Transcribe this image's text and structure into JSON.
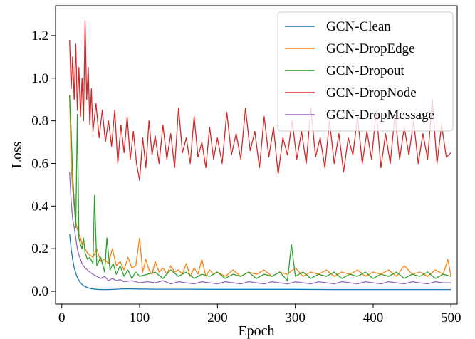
{
  "chart_data": {
    "type": "line",
    "xlabel": "Epoch",
    "ylabel": "Loss",
    "xlim": [
      -8,
      508
    ],
    "ylim": [
      -0.06,
      1.34
    ],
    "xticks": [
      0,
      100,
      200,
      300,
      400,
      500
    ],
    "xtick_labels": [
      "0",
      "100",
      "200",
      "300",
      "400",
      "500"
    ],
    "yticks": [
      0.0,
      0.2,
      0.4,
      0.6,
      0.8,
      1.0,
      1.2
    ],
    "ytick_labels": [
      "0.0",
      "0.2",
      "0.4",
      "0.6",
      "0.8",
      "1.0",
      "1.2"
    ],
    "grid": false,
    "legend_position": "top-right",
    "series": [
      {
        "name": "GCN-Clean",
        "color": "#1f77b4",
        "x": [
          10,
          12,
          14,
          16,
          18,
          20,
          23,
          26,
          30,
          35,
          40,
          45,
          50,
          60,
          70,
          80,
          100,
          120,
          150,
          200,
          250,
          300,
          350,
          400,
          450,
          500
        ],
        "y": [
          0.27,
          0.2,
          0.15,
          0.11,
          0.085,
          0.065,
          0.045,
          0.032,
          0.022,
          0.015,
          0.011,
          0.009,
          0.008,
          0.008,
          0.01,
          0.012,
          0.011,
          0.01,
          0.01,
          0.009,
          0.009,
          0.009,
          0.008,
          0.008,
          0.008,
          0.008
        ]
      },
      {
        "name": "GCN-DropEdge",
        "color": "#ff7f0e",
        "x": [
          10,
          12,
          14,
          16,
          18,
          20,
          22,
          24,
          26,
          28,
          30,
          33,
          36,
          40,
          45,
          50,
          55,
          60,
          65,
          70,
          75,
          80,
          85,
          90,
          95,
          100,
          104,
          108,
          112,
          116,
          120,
          125,
          130,
          135,
          140,
          145,
          150,
          155,
          160,
          165,
          170,
          175,
          180,
          185,
          190,
          195,
          200,
          210,
          220,
          230,
          240,
          250,
          260,
          270,
          280,
          290,
          300,
          310,
          320,
          330,
          340,
          350,
          360,
          370,
          380,
          390,
          400,
          410,
          420,
          430,
          440,
          450,
          460,
          470,
          480,
          490,
          496,
          500
        ],
        "y": [
          0.92,
          0.6,
          0.48,
          0.4,
          0.33,
          0.29,
          0.27,
          0.25,
          0.22,
          0.24,
          0.2,
          0.18,
          0.17,
          0.16,
          0.2,
          0.14,
          0.15,
          0.13,
          0.2,
          0.12,
          0.14,
          0.1,
          0.16,
          0.11,
          0.12,
          0.25,
          0.09,
          0.15,
          0.1,
          0.08,
          0.14,
          0.09,
          0.11,
          0.08,
          0.12,
          0.09,
          0.1,
          0.08,
          0.13,
          0.07,
          0.11,
          0.08,
          0.15,
          0.07,
          0.1,
          0.08,
          0.09,
          0.07,
          0.1,
          0.07,
          0.09,
          0.08,
          0.1,
          0.07,
          0.09,
          0.08,
          0.11,
          0.07,
          0.09,
          0.08,
          0.1,
          0.07,
          0.09,
          0.08,
          0.1,
          0.07,
          0.09,
          0.08,
          0.1,
          0.07,
          0.12,
          0.08,
          0.09,
          0.07,
          0.1,
          0.08,
          0.15,
          0.07
        ]
      },
      {
        "name": "GCN-Dropout",
        "color": "#2ca02c",
        "x": [
          10,
          12,
          14,
          16,
          18,
          20,
          22,
          24,
          26,
          28,
          30,
          33,
          36,
          40,
          42,
          45,
          50,
          55,
          58,
          62,
          66,
          70,
          75,
          80,
          85,
          90,
          95,
          100,
          110,
          120,
          130,
          140,
          150,
          160,
          170,
          180,
          190,
          200,
          210,
          220,
          230,
          240,
          250,
          260,
          270,
          280,
          290,
          295,
          300,
          310,
          320,
          330,
          340,
          350,
          360,
          370,
          380,
          390,
          400,
          410,
          420,
          430,
          440,
          450,
          460,
          470,
          480,
          490,
          500
        ],
        "y": [
          0.92,
          0.75,
          0.55,
          0.42,
          0.3,
          0.83,
          0.25,
          0.22,
          0.2,
          0.25,
          0.18,
          0.15,
          0.16,
          0.13,
          0.45,
          0.12,
          0.16,
          0.09,
          0.25,
          0.1,
          0.13,
          0.08,
          0.12,
          0.07,
          0.1,
          0.06,
          0.09,
          0.07,
          0.08,
          0.09,
          0.06,
          0.1,
          0.07,
          0.09,
          0.06,
          0.08,
          0.07,
          0.09,
          0.06,
          0.08,
          0.07,
          0.09,
          0.06,
          0.08,
          0.07,
          0.09,
          0.05,
          0.22,
          0.07,
          0.09,
          0.06,
          0.08,
          0.07,
          0.09,
          0.06,
          0.08,
          0.07,
          0.09,
          0.06,
          0.08,
          0.07,
          0.09,
          0.06,
          0.08,
          0.07,
          0.09,
          0.06,
          0.08,
          0.07
        ]
      },
      {
        "name": "GCN-DropNode",
        "color": "#d62728",
        "x": [
          10,
          12,
          14,
          16,
          18,
          20,
          22,
          24,
          26,
          28,
          30,
          32,
          34,
          36,
          38,
          40,
          44,
          48,
          52,
          56,
          60,
          64,
          68,
          72,
          76,
          80,
          84,
          88,
          92,
          96,
          100,
          104,
          108,
          112,
          116,
          120,
          125,
          130,
          135,
          140,
          145,
          150,
          155,
          160,
          165,
          170,
          175,
          180,
          185,
          190,
          195,
          200,
          206,
          212,
          218,
          224,
          230,
          236,
          242,
          248,
          254,
          260,
          266,
          272,
          278,
          284,
          290,
          296,
          302,
          308,
          314,
          320,
          326,
          332,
          338,
          344,
          350,
          356,
          362,
          368,
          374,
          380,
          386,
          392,
          398,
          404,
          410,
          416,
          422,
          428,
          434,
          440,
          446,
          452,
          458,
          464,
          470,
          476,
          482,
          488,
          494,
          500
        ],
        "y": [
          1.18,
          0.95,
          1.1,
          0.9,
          1.16,
          0.85,
          1.05,
          0.82,
          1.0,
          0.8,
          1.27,
          0.9,
          1.05,
          0.78,
          0.95,
          0.75,
          0.88,
          0.72,
          0.85,
          0.7,
          0.8,
          0.68,
          0.85,
          0.6,
          0.78,
          0.65,
          0.82,
          0.62,
          0.75,
          0.6,
          0.52,
          0.72,
          0.58,
          0.8,
          0.64,
          0.73,
          0.6,
          0.78,
          0.62,
          0.74,
          0.58,
          0.86,
          0.65,
          0.72,
          0.6,
          0.82,
          0.63,
          0.7,
          0.58,
          0.77,
          0.62,
          0.72,
          0.6,
          0.84,
          0.64,
          0.74,
          0.62,
          0.86,
          0.66,
          0.75,
          0.58,
          0.82,
          0.63,
          0.77,
          0.55,
          0.72,
          0.64,
          0.8,
          0.62,
          0.75,
          0.6,
          0.86,
          0.63,
          0.72,
          0.58,
          0.8,
          0.6,
          0.74,
          0.56,
          0.72,
          0.64,
          0.82,
          0.6,
          0.75,
          0.62,
          0.85,
          0.58,
          0.74,
          0.6,
          0.83,
          0.62,
          0.77,
          0.64,
          0.8,
          0.6,
          0.74,
          0.62,
          0.9,
          0.6,
          0.78,
          0.63,
          0.65
        ]
      },
      {
        "name": "GCN-DropMessage",
        "color": "#9467bd",
        "x": [
          10,
          12,
          14,
          16,
          18,
          20,
          22,
          24,
          26,
          28,
          30,
          33,
          36,
          40,
          45,
          50,
          55,
          60,
          65,
          70,
          75,
          80,
          90,
          100,
          110,
          120,
          130,
          140,
          150,
          160,
          170,
          180,
          190,
          200,
          210,
          220,
          230,
          240,
          250,
          260,
          270,
          280,
          290,
          300,
          310,
          320,
          330,
          340,
          350,
          360,
          370,
          380,
          390,
          400,
          410,
          420,
          430,
          440,
          450,
          460,
          470,
          480,
          490,
          500
        ],
        "y": [
          0.56,
          0.42,
          0.34,
          0.3,
          0.25,
          0.2,
          0.17,
          0.15,
          0.13,
          0.12,
          0.11,
          0.1,
          0.09,
          0.08,
          0.07,
          0.06,
          0.07,
          0.05,
          0.06,
          0.05,
          0.055,
          0.045,
          0.05,
          0.04,
          0.045,
          0.04,
          0.05,
          0.035,
          0.045,
          0.04,
          0.035,
          0.045,
          0.04,
          0.035,
          0.045,
          0.04,
          0.035,
          0.045,
          0.04,
          0.035,
          0.045,
          0.04,
          0.035,
          0.045,
          0.04,
          0.035,
          0.045,
          0.04,
          0.035,
          0.045,
          0.04,
          0.035,
          0.045,
          0.04,
          0.035,
          0.045,
          0.04,
          0.035,
          0.045,
          0.04,
          0.035,
          0.045,
          0.04,
          0.04
        ]
      }
    ]
  }
}
